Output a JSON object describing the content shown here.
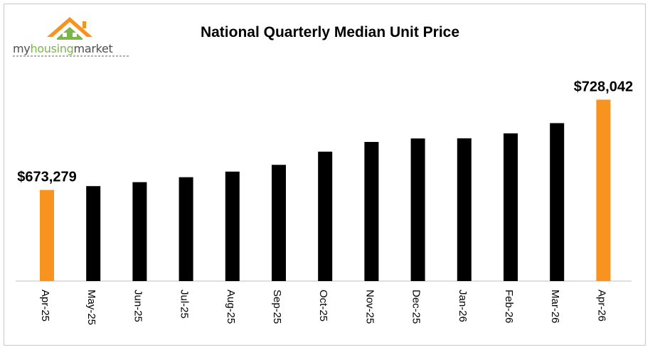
{
  "brand": {
    "name_part1": "my",
    "name_part2": "housing",
    "name_part3": "market"
  },
  "colors": {
    "highlight": "#f7931e",
    "bar": "#000000",
    "house_green": "#7ab648",
    "house_orange": "#f7931e"
  },
  "chart_data": {
    "type": "bar",
    "title": "National Quarterly Median Unit Price",
    "categories": [
      "Apr-25",
      "May-25",
      "Jun-25",
      "Jul-25",
      "Aug-25",
      "Sep-25",
      "Oct-25",
      "Nov-25",
      "Dec-25",
      "Jan-26",
      "Feb-26",
      "Mar-26",
      "Apr-26"
    ],
    "values": [
      673279,
      675600,
      678000,
      681000,
      684400,
      688500,
      696500,
      702400,
      704500,
      704600,
      707600,
      713800,
      728042
    ],
    "highlight": [
      true,
      false,
      false,
      false,
      false,
      false,
      false,
      false,
      false,
      false,
      false,
      false,
      true
    ],
    "data_labels": [
      {
        "index": 0,
        "text": "$673,279"
      },
      {
        "index": 12,
        "text": "$728,042"
      }
    ],
    "ylim": [
      618000,
      742000
    ],
    "xlabel": "",
    "ylabel": "",
    "grid": false,
    "legend": "none"
  }
}
